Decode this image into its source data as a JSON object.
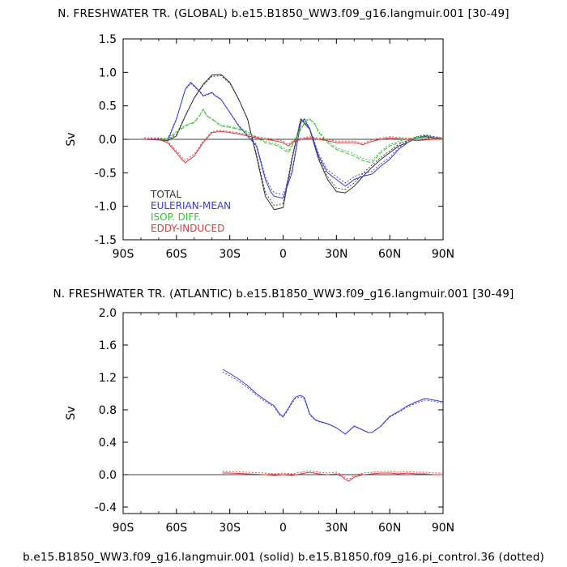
{
  "chart_data": [
    {
      "type": "line",
      "title": "N. FRESHWATER TR. (GLOBAL) b.e15.B1850_WW3.f09_g16.langmuir.001 [30-49]",
      "ylabel": "Sv",
      "xlim": [
        -90,
        90
      ],
      "ylim": [
        -1.5,
        1.5
      ],
      "xticks": [
        "90S",
        "60S",
        "30S",
        "0",
        "30N",
        "60N",
        "90N"
      ],
      "yticks": [
        "1.5",
        "1.0",
        "0.5",
        "0.0",
        "-0.5",
        "-1.0",
        "-1.5"
      ],
      "legend": [
        "TOTAL",
        "EULERIAN-MEAN",
        "ISOP. DIFF.",
        "EDDY-INDUCED"
      ],
      "legend_position": "lower-left",
      "colors": {
        "total": "#333333",
        "eulerian": "#3a3ad6",
        "isop": "#2fc42f",
        "eddy": "#d63a3a"
      },
      "series": [
        {
          "name": "TOTAL",
          "style": "solid",
          "x": [
            -78,
            -70,
            -65,
            -60,
            -55,
            -50,
            -45,
            -40,
            -35,
            -30,
            -25,
            -20,
            -15,
            -10,
            -5,
            0,
            5,
            10,
            15,
            20,
            25,
            30,
            35,
            40,
            45,
            50,
            55,
            60,
            65,
            70,
            75,
            80,
            85,
            90
          ],
          "y": [
            0,
            -0.01,
            -0.02,
            0.05,
            0.35,
            0.62,
            0.82,
            0.96,
            0.97,
            0.85,
            0.6,
            0.3,
            -0.25,
            -0.85,
            -1.05,
            -1.02,
            -0.3,
            0.3,
            0.15,
            -0.3,
            -0.6,
            -0.78,
            -0.8,
            -0.7,
            -0.55,
            -0.42,
            -0.3,
            -0.2,
            -0.1,
            -0.05,
            0.02,
            0.04,
            0.02,
            0
          ]
        },
        {
          "name": "EULERIAN-MEAN",
          "style": "solid",
          "x": [
            -78,
            -70,
            -65,
            -60,
            -55,
            -52,
            -50,
            -47,
            -45,
            -42,
            -40,
            -38,
            -35,
            -30,
            -25,
            -20,
            -15,
            -10,
            -7,
            -5,
            0,
            5,
            10,
            12,
            15,
            20,
            25,
            30,
            35,
            40,
            45,
            50,
            55,
            60,
            65,
            70,
            75,
            80,
            85,
            90
          ],
          "y": [
            0,
            -0.01,
            -0.02,
            0.3,
            0.75,
            0.85,
            0.8,
            0.72,
            0.65,
            0.68,
            0.7,
            0.65,
            0.6,
            0.4,
            0.2,
            0.05,
            -0.1,
            -0.6,
            -0.78,
            -0.85,
            -0.88,
            -0.5,
            0.25,
            0.3,
            0.15,
            -0.25,
            -0.5,
            -0.6,
            -0.7,
            -0.6,
            -0.55,
            -0.52,
            -0.4,
            -0.3,
            -0.15,
            -0.05,
            0.02,
            0.05,
            0.02,
            0
          ]
        },
        {
          "name": "ISOP. DIFF.",
          "style": "dashed",
          "x": [
            -78,
            -70,
            -65,
            -60,
            -55,
            -50,
            -47,
            -45,
            -43,
            -40,
            -35,
            -30,
            -25,
            -20,
            -15,
            -10,
            -5,
            -3,
            0,
            3,
            5,
            10,
            13,
            15,
            18,
            20,
            25,
            30,
            35,
            40,
            45,
            50,
            55,
            60,
            65,
            70,
            75,
            80,
            85,
            90
          ],
          "y": [
            0,
            0,
            0,
            0.1,
            0.2,
            0.25,
            0.35,
            0.45,
            0.35,
            0.3,
            0.2,
            0.18,
            0.15,
            0.1,
            0.02,
            -0.05,
            -0.08,
            -0.1,
            -0.15,
            -0.2,
            -0.1,
            0.15,
            0.28,
            0.3,
            0.22,
            0.1,
            -0.05,
            -0.15,
            -0.2,
            -0.25,
            -0.32,
            -0.35,
            -0.2,
            -0.1,
            -0.05,
            -0.02,
            0.02,
            0.03,
            0.01,
            0
          ]
        },
        {
          "name": "EDDY-INDUCED",
          "style": "solid",
          "x": [
            -78,
            -70,
            -65,
            -60,
            -57,
            -55,
            -50,
            -45,
            -40,
            -35,
            -30,
            -25,
            -20,
            -15,
            -10,
            -5,
            0,
            3,
            5,
            10,
            15,
            20,
            25,
            30,
            35,
            40,
            45,
            50,
            55,
            60,
            65,
            70,
            75,
            80,
            85,
            90
          ],
          "y": [
            0,
            0,
            -0.05,
            -0.2,
            -0.3,
            -0.35,
            -0.25,
            -0.05,
            0.1,
            0.12,
            0.1,
            0.08,
            0.05,
            0.02,
            0,
            -0.02,
            -0.05,
            -0.1,
            -0.05,
            0,
            0.02,
            0,
            -0.02,
            -0.05,
            -0.05,
            -0.05,
            -0.08,
            -0.03,
            0,
            0.02,
            0.01,
            0,
            -0.02,
            -0.01,
            0,
            0
          ]
        }
      ]
    },
    {
      "type": "line",
      "title": "N. FRESHWATER TR. (ATLANTIC) b.e15.B1850_WW3.f09_g16.langmuir.001 [30-49]",
      "ylabel": "Sv",
      "xlim": [
        -90,
        90
      ],
      "ylim": [
        -0.5,
        2.0
      ],
      "xticks": [
        "90S",
        "60S",
        "30S",
        "0",
        "30N",
        "60N",
        "90N"
      ],
      "yticks": [
        "2.0",
        "1.6",
        "1.2",
        "0.8",
        "0.4",
        "0.0",
        "-0.4"
      ],
      "colors": {
        "eulerian": "#3a3ad6",
        "eddy": "#d63a3a"
      },
      "series": [
        {
          "name": "EULERIAN-MEAN",
          "style": "solid",
          "x": [
            -34,
            -30,
            -25,
            -20,
            -15,
            -10,
            -5,
            -2,
            0,
            3,
            5,
            7,
            10,
            12,
            15,
            18,
            20,
            25,
            30,
            35,
            38,
            40,
            42,
            45,
            48,
            50,
            55,
            60,
            65,
            70,
            75,
            80,
            85,
            90
          ],
          "y": [
            1.3,
            1.25,
            1.18,
            1.1,
            1.0,
            0.92,
            0.85,
            0.75,
            0.72,
            0.82,
            0.9,
            0.96,
            0.98,
            0.95,
            0.75,
            0.68,
            0.66,
            0.63,
            0.58,
            0.5,
            0.56,
            0.6,
            0.58,
            0.55,
            0.52,
            0.52,
            0.6,
            0.72,
            0.78,
            0.85,
            0.9,
            0.94,
            0.92,
            0.9
          ]
        },
        {
          "name": "EDDY-INDUCED",
          "style": "solid",
          "x": [
            -34,
            -30,
            -20,
            -10,
            -5,
            0,
            5,
            10,
            15,
            20,
            25,
            30,
            33,
            35,
            37,
            40,
            45,
            50,
            55,
            60,
            65,
            70,
            75,
            80,
            85,
            90
          ],
          "y": [
            0.02,
            0.02,
            0.01,
            0,
            -0.01,
            0,
            -0.01,
            0.01,
            0.03,
            0.01,
            0,
            0.01,
            -0.02,
            -0.06,
            -0.08,
            -0.03,
            0,
            0.01,
            0.02,
            0.02,
            0.01,
            0.02,
            0.01,
            0.01,
            0,
            0
          ]
        }
      ]
    }
  ],
  "footer": "b.e15.B1850_WW3.f09_g16.langmuir.001 (solid) b.e15.B1850.f09_g16.pi_control.36 (dotted)"
}
